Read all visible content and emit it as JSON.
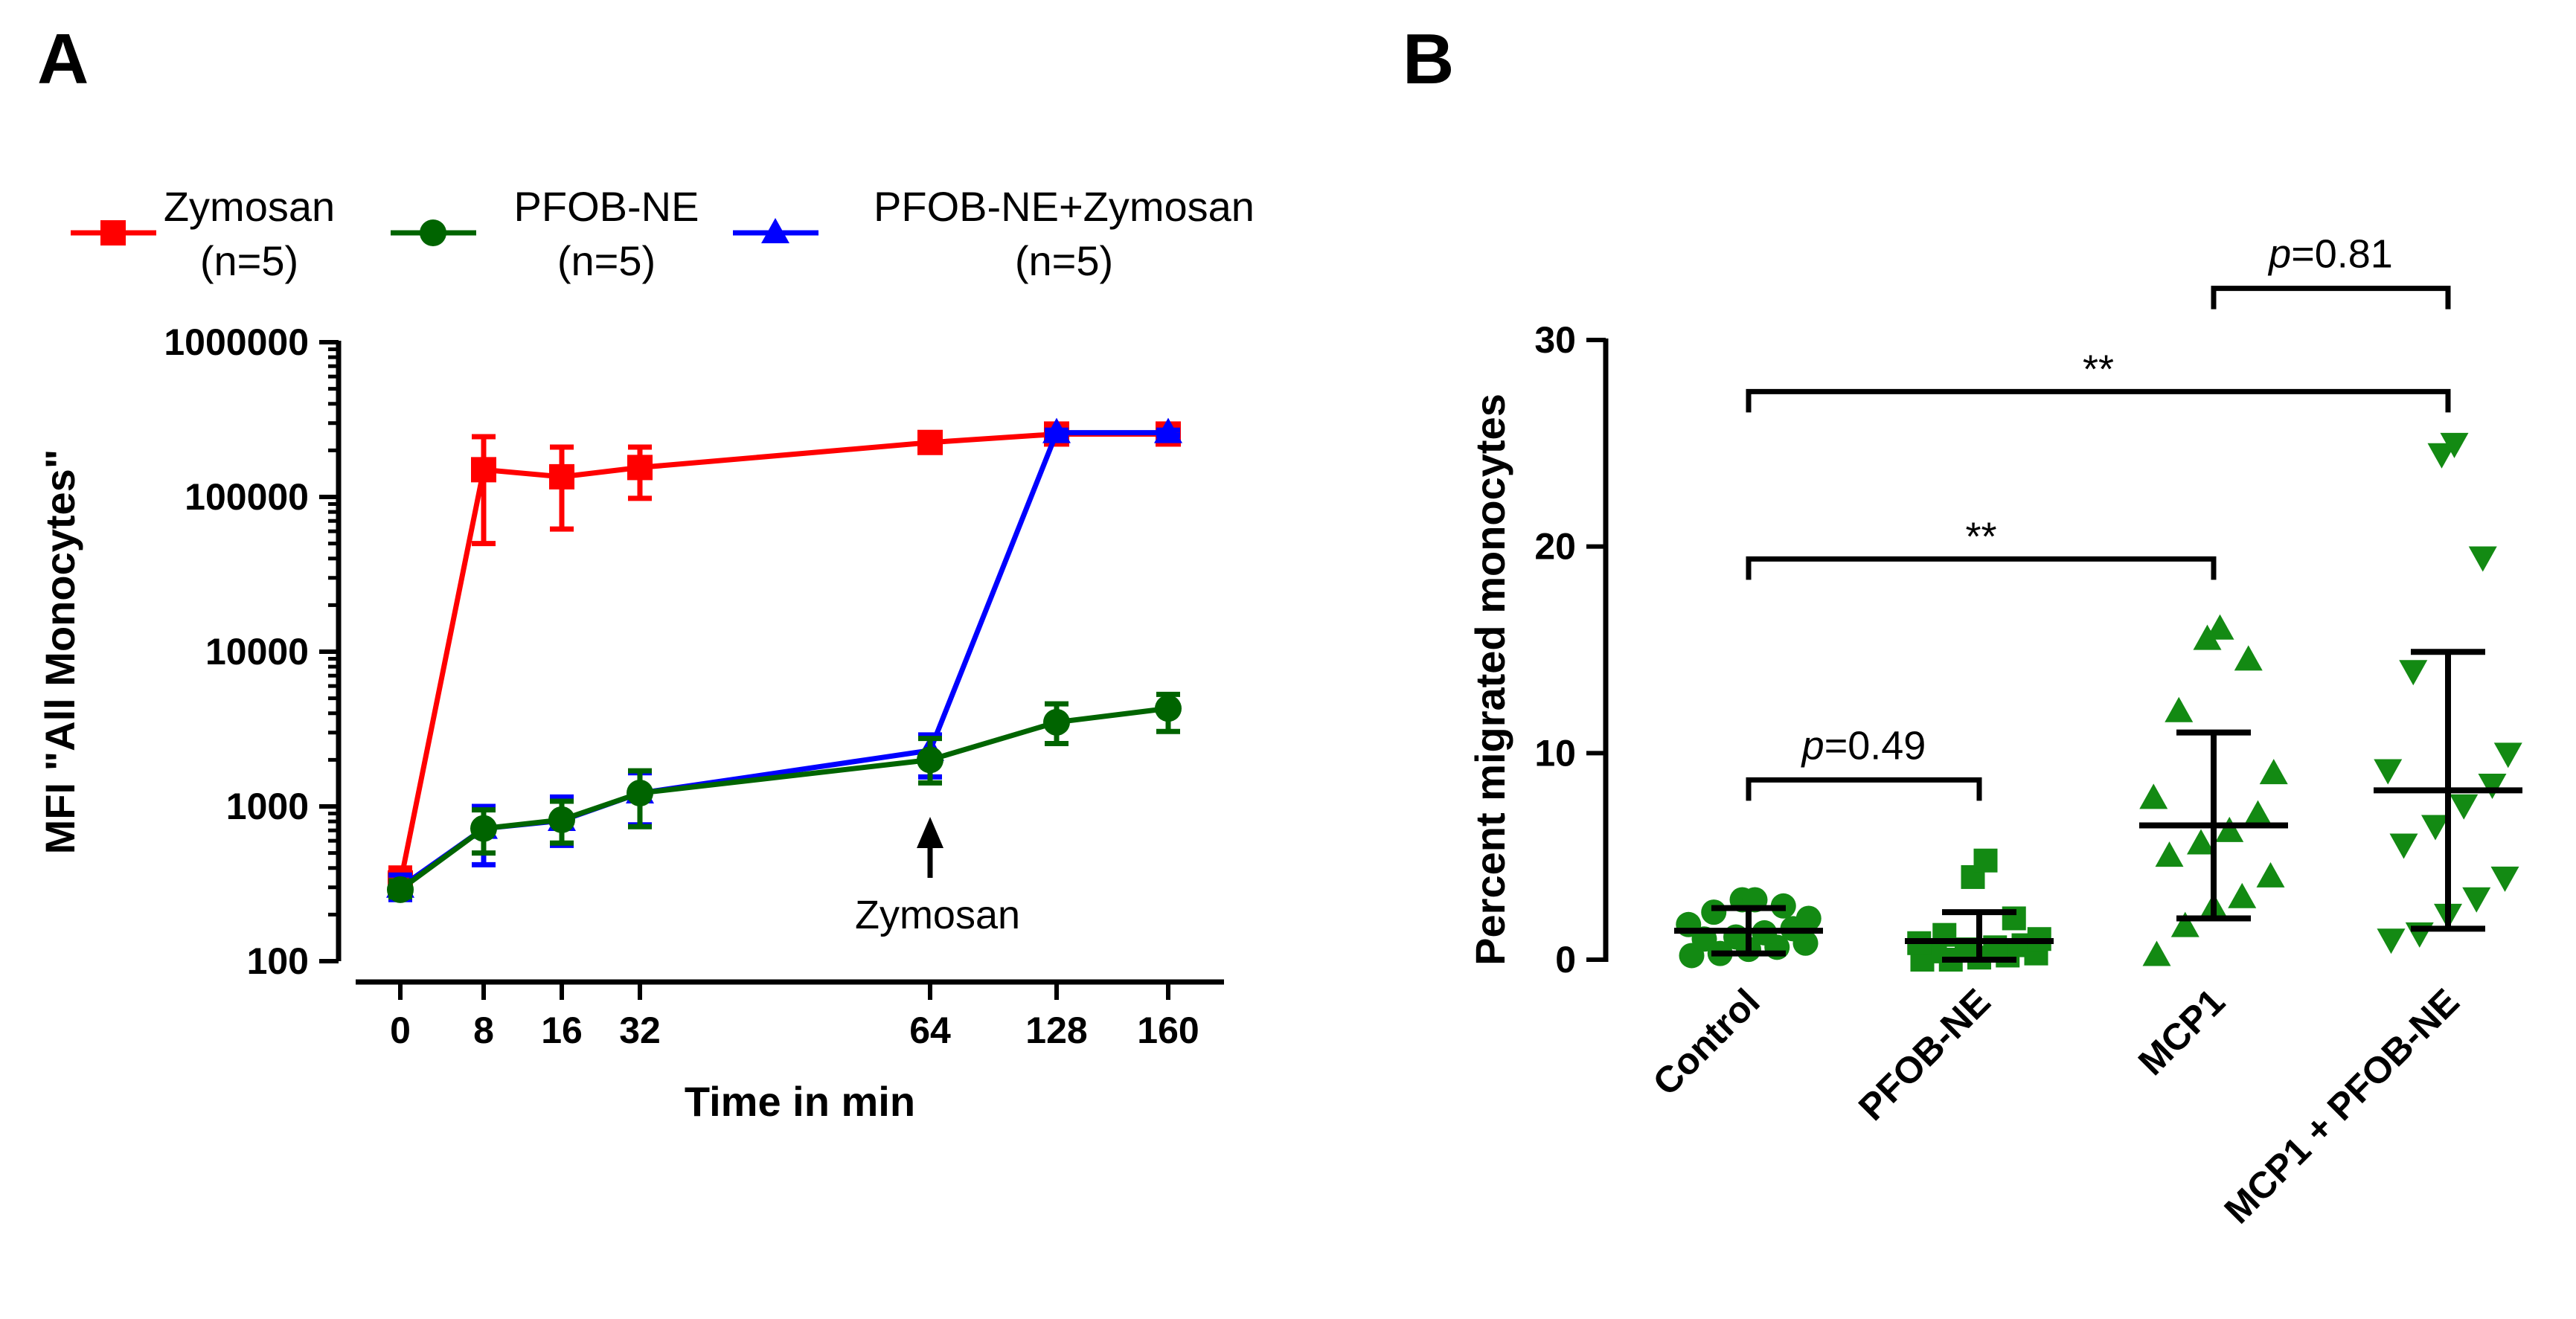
{
  "panels": {
    "a_letter": "A",
    "b_letter": "B"
  },
  "colors": {
    "zymosan": "#ff0000",
    "pfob": "#006400",
    "combo": "#0000ff",
    "scatter": "#138a13",
    "axis": "#000000"
  },
  "chart_data": [
    {
      "type": "line",
      "panel": "A",
      "ylabel": "MFI \"All Monocytes\"",
      "xlabel": "Time in min",
      "yscale": "log",
      "ylim": [
        100,
        1000000
      ],
      "categories": [
        "0",
        "8",
        "16",
        "32",
        "64",
        "128",
        "160"
      ],
      "yticks": [
        "100",
        "1000",
        "10000",
        "100000",
        "1000000"
      ],
      "legend": [
        {
          "line1": "Zymosan",
          "line2": "(n=5)"
        },
        {
          "line1": "PFOB-NE",
          "line2": "(n=5)"
        },
        {
          "line1": "PFOB-NE+Zymosan",
          "line2": "(n=5)"
        }
      ],
      "annotation": "Zymosan",
      "annotation_category": "64",
      "series": [
        {
          "name": "Zymosan (n=5)",
          "marker": "square",
          "color": "#ff0000",
          "values": [
            320,
            150000,
            135000,
            155000,
            225000,
            255000,
            255000
          ],
          "err_low": [
            265,
            50000,
            62000,
            98000,
            195000,
            240000,
            235000
          ],
          "err_high": [
            400,
            245000,
            210000,
            210000,
            260000,
            270000,
            270000
          ]
        },
        {
          "name": "PFOB-NE+Zymosan (n=5)",
          "marker": "triangle",
          "color": "#0000ff",
          "values": [
            300,
            720,
            810,
            1220,
            2300,
            260000,
            260000
          ],
          "err_low": [
            250,
            420,
            560,
            760,
            1550,
            250000,
            250000
          ],
          "err_high": [
            360,
            1000,
            1150,
            1650,
            2900,
            270000,
            270000
          ]
        },
        {
          "name": "PFOB-NE (n=5)",
          "marker": "circle",
          "color": "#006400",
          "values": [
            290,
            720,
            820,
            1220,
            2000,
            3500,
            4300
          ],
          "err_low": [
            260,
            500,
            580,
            740,
            1420,
            2550,
            3050
          ],
          "err_high": [
            330,
            950,
            1080,
            1700,
            2750,
            4600,
            5300
          ]
        }
      ]
    },
    {
      "type": "scatter",
      "panel": "B",
      "ylabel": "Percent migrated monocytes",
      "ylim": [
        0,
        30
      ],
      "yticks": [
        "0",
        "10",
        "20",
        "30"
      ],
      "categories": [
        "Control",
        "PFOB-NE",
        "MCP1",
        "MCP1 + PFOB-NE"
      ],
      "groups": [
        {
          "name": "Control",
          "marker": "circle",
          "mean": 1.4,
          "sd_low": 0.3,
          "sd_high": 2.5,
          "points": [
            0.2,
            0.3,
            0.5,
            0.6,
            0.8,
            1.0,
            1.1,
            1.3,
            1.5,
            1.7,
            2.0,
            2.3,
            2.6,
            2.9,
            2.9
          ]
        },
        {
          "name": "PFOB-NE",
          "marker": "square",
          "mean": 0.9,
          "sd_low": 0.0,
          "sd_high": 2.3,
          "points": [
            0.0,
            0.0,
            0.1,
            0.2,
            0.3,
            0.4,
            0.5,
            0.6,
            0.7,
            0.8,
            1.0,
            1.2,
            2.0,
            4.0,
            4.8
          ]
        },
        {
          "name": "MCP1",
          "marker": "triangle-up",
          "mean": 6.5,
          "sd_low": 2.0,
          "sd_high": 11.0,
          "points": [
            0.2,
            1.6,
            2.5,
            3.0,
            4.0,
            5.0,
            5.6,
            6.2,
            7.0,
            7.8,
            9.0,
            12.0,
            14.5,
            15.5,
            16.0
          ]
        },
        {
          "name": "MCP1 + PFOB-NE",
          "marker": "triangle-down",
          "mean": 8.2,
          "sd_low": 1.5,
          "sd_high": 14.9,
          "points": [
            1.0,
            1.3,
            2.2,
            3.0,
            4.0,
            5.6,
            6.5,
            7.5,
            8.5,
            9.2,
            10.0,
            14.0,
            19.5,
            24.5,
            25.0
          ]
        }
      ],
      "comparisons": [
        {
          "label_prefix": "p",
          "label_value": "=0.81",
          "from": "MCP1",
          "to": "MCP1 + PFOB-NE",
          "y": 32.5
        },
        {
          "label": "**",
          "from": "Control",
          "to": "MCP1 + PFOB-NE",
          "y": 27.5
        },
        {
          "label": "**",
          "from": "Control",
          "to": "MCP1",
          "y": 19.4
        },
        {
          "label_prefix": "p",
          "label_value": "=0.49",
          "from": "Control",
          "to": "PFOB-NE",
          "y": 8.7
        }
      ]
    }
  ]
}
